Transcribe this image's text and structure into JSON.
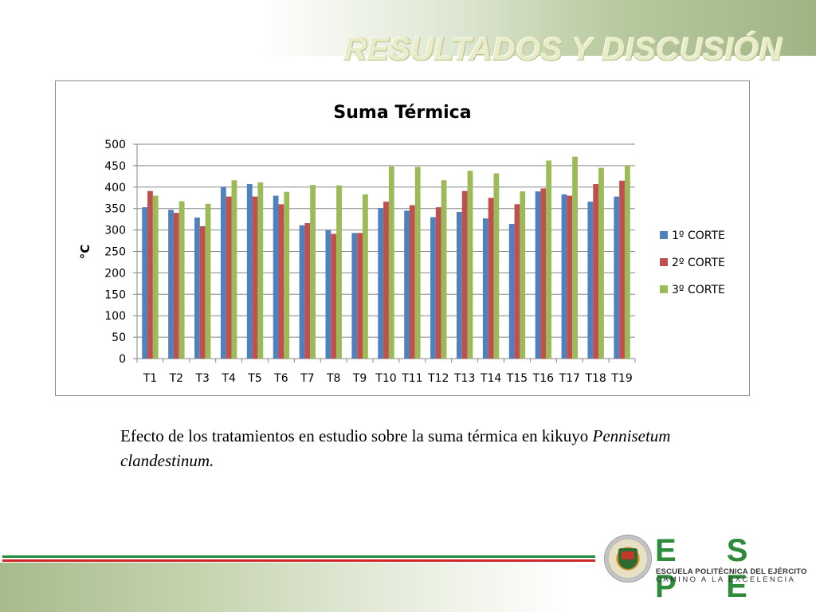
{
  "slide": {
    "title": "RESULTADOS Y DISCUSIÓN",
    "caption_text": "Efecto de los tratamientos en estudio sobre la suma térmica en kikuyo ",
    "caption_italic": "Pennisetum clandestinum.",
    "logo_name": "E S P E",
    "logo_line1": "ESCUELA POLITÉCNICA DEL EJÉRCITO",
    "logo_line2": "CAMINO A LA EXCELENCIA",
    "seal_text": "ESCUELA POLITÉCNICA DEL EJÉRCITO ECUADOR"
  },
  "chart_data": {
    "type": "bar",
    "title": "Suma Térmica",
    "xlabel": "",
    "ylabel": "°C",
    "ylim": [
      0,
      500
    ],
    "yticks": [
      0,
      50,
      100,
      150,
      200,
      250,
      300,
      350,
      400,
      450,
      500
    ],
    "grid": true,
    "legend_position": "right",
    "categories": [
      "T1",
      "T2",
      "T3",
      "T4",
      "T5",
      "T6",
      "T7",
      "T8",
      "T9",
      "T10",
      "T11",
      "T12",
      "T13",
      "T14",
      "T15",
      "T16",
      "T17",
      "T18",
      "T19"
    ],
    "series": [
      {
        "name": "1º CORTE",
        "color": "#4f81bd",
        "values": [
          353,
          347,
          329,
          400,
          407,
          380,
          311,
          300,
          293,
          351,
          345,
          330,
          342,
          327,
          314,
          390,
          383,
          366,
          378
        ]
      },
      {
        "name": "2º CORTE",
        "color": "#c0504d",
        "values": [
          391,
          340,
          309,
          378,
          378,
          360,
          316,
          291,
          293,
          366,
          358,
          353,
          391,
          375,
          360,
          397,
          380,
          407,
          415
        ]
      },
      {
        "name": "3º CORTE",
        "color": "#9bbb59",
        "values": [
          380,
          367,
          361,
          416,
          411,
          389,
          405,
          404,
          383,
          448,
          447,
          416,
          438,
          432,
          390,
          462,
          471,
          445,
          451
        ]
      }
    ]
  }
}
